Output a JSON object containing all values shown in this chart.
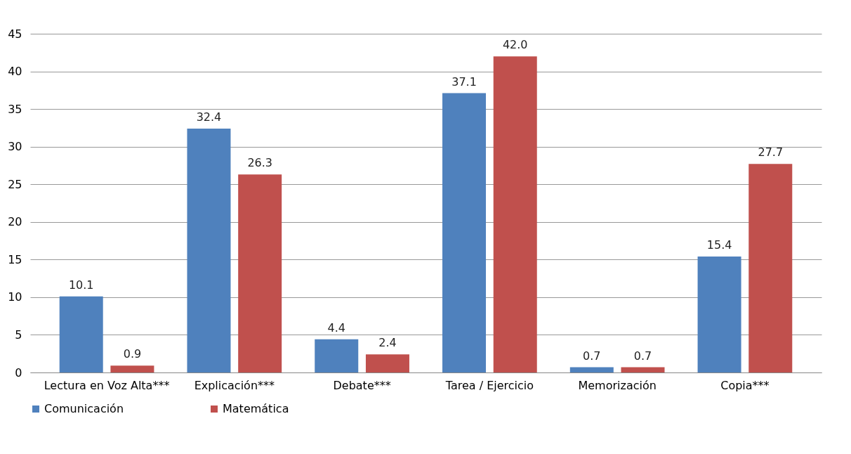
{
  "chart_data": {
    "type": "bar",
    "categories": [
      "Lectura en Voz Alta***",
      "Explicación***",
      "Debate***",
      "Tarea / Ejercicio",
      "Memorización",
      "Copia***"
    ],
    "series": [
      {
        "name": "Comunicación",
        "color": "#4f81bd",
        "values": [
          10.1,
          32.4,
          4.4,
          37.1,
          0.7,
          15.4
        ],
        "value_labels": [
          "10.1",
          "32.4",
          "4.4",
          "37.1",
          "0.7",
          "15.4"
        ]
      },
      {
        "name": "Matemática",
        "color": "#c0504d",
        "values": [
          0.9,
          26.3,
          2.4,
          42.0,
          0.7,
          27.7
        ],
        "value_labels": [
          "0.9",
          "26.3",
          "2.4",
          "42.0",
          "0.7",
          "27.7"
        ]
      }
    ],
    "ylim": [
      0,
      45
    ],
    "yticks": [
      0,
      5,
      10,
      15,
      20,
      25,
      30,
      35,
      40,
      45
    ],
    "grid": "y",
    "legend": "bottom"
  }
}
